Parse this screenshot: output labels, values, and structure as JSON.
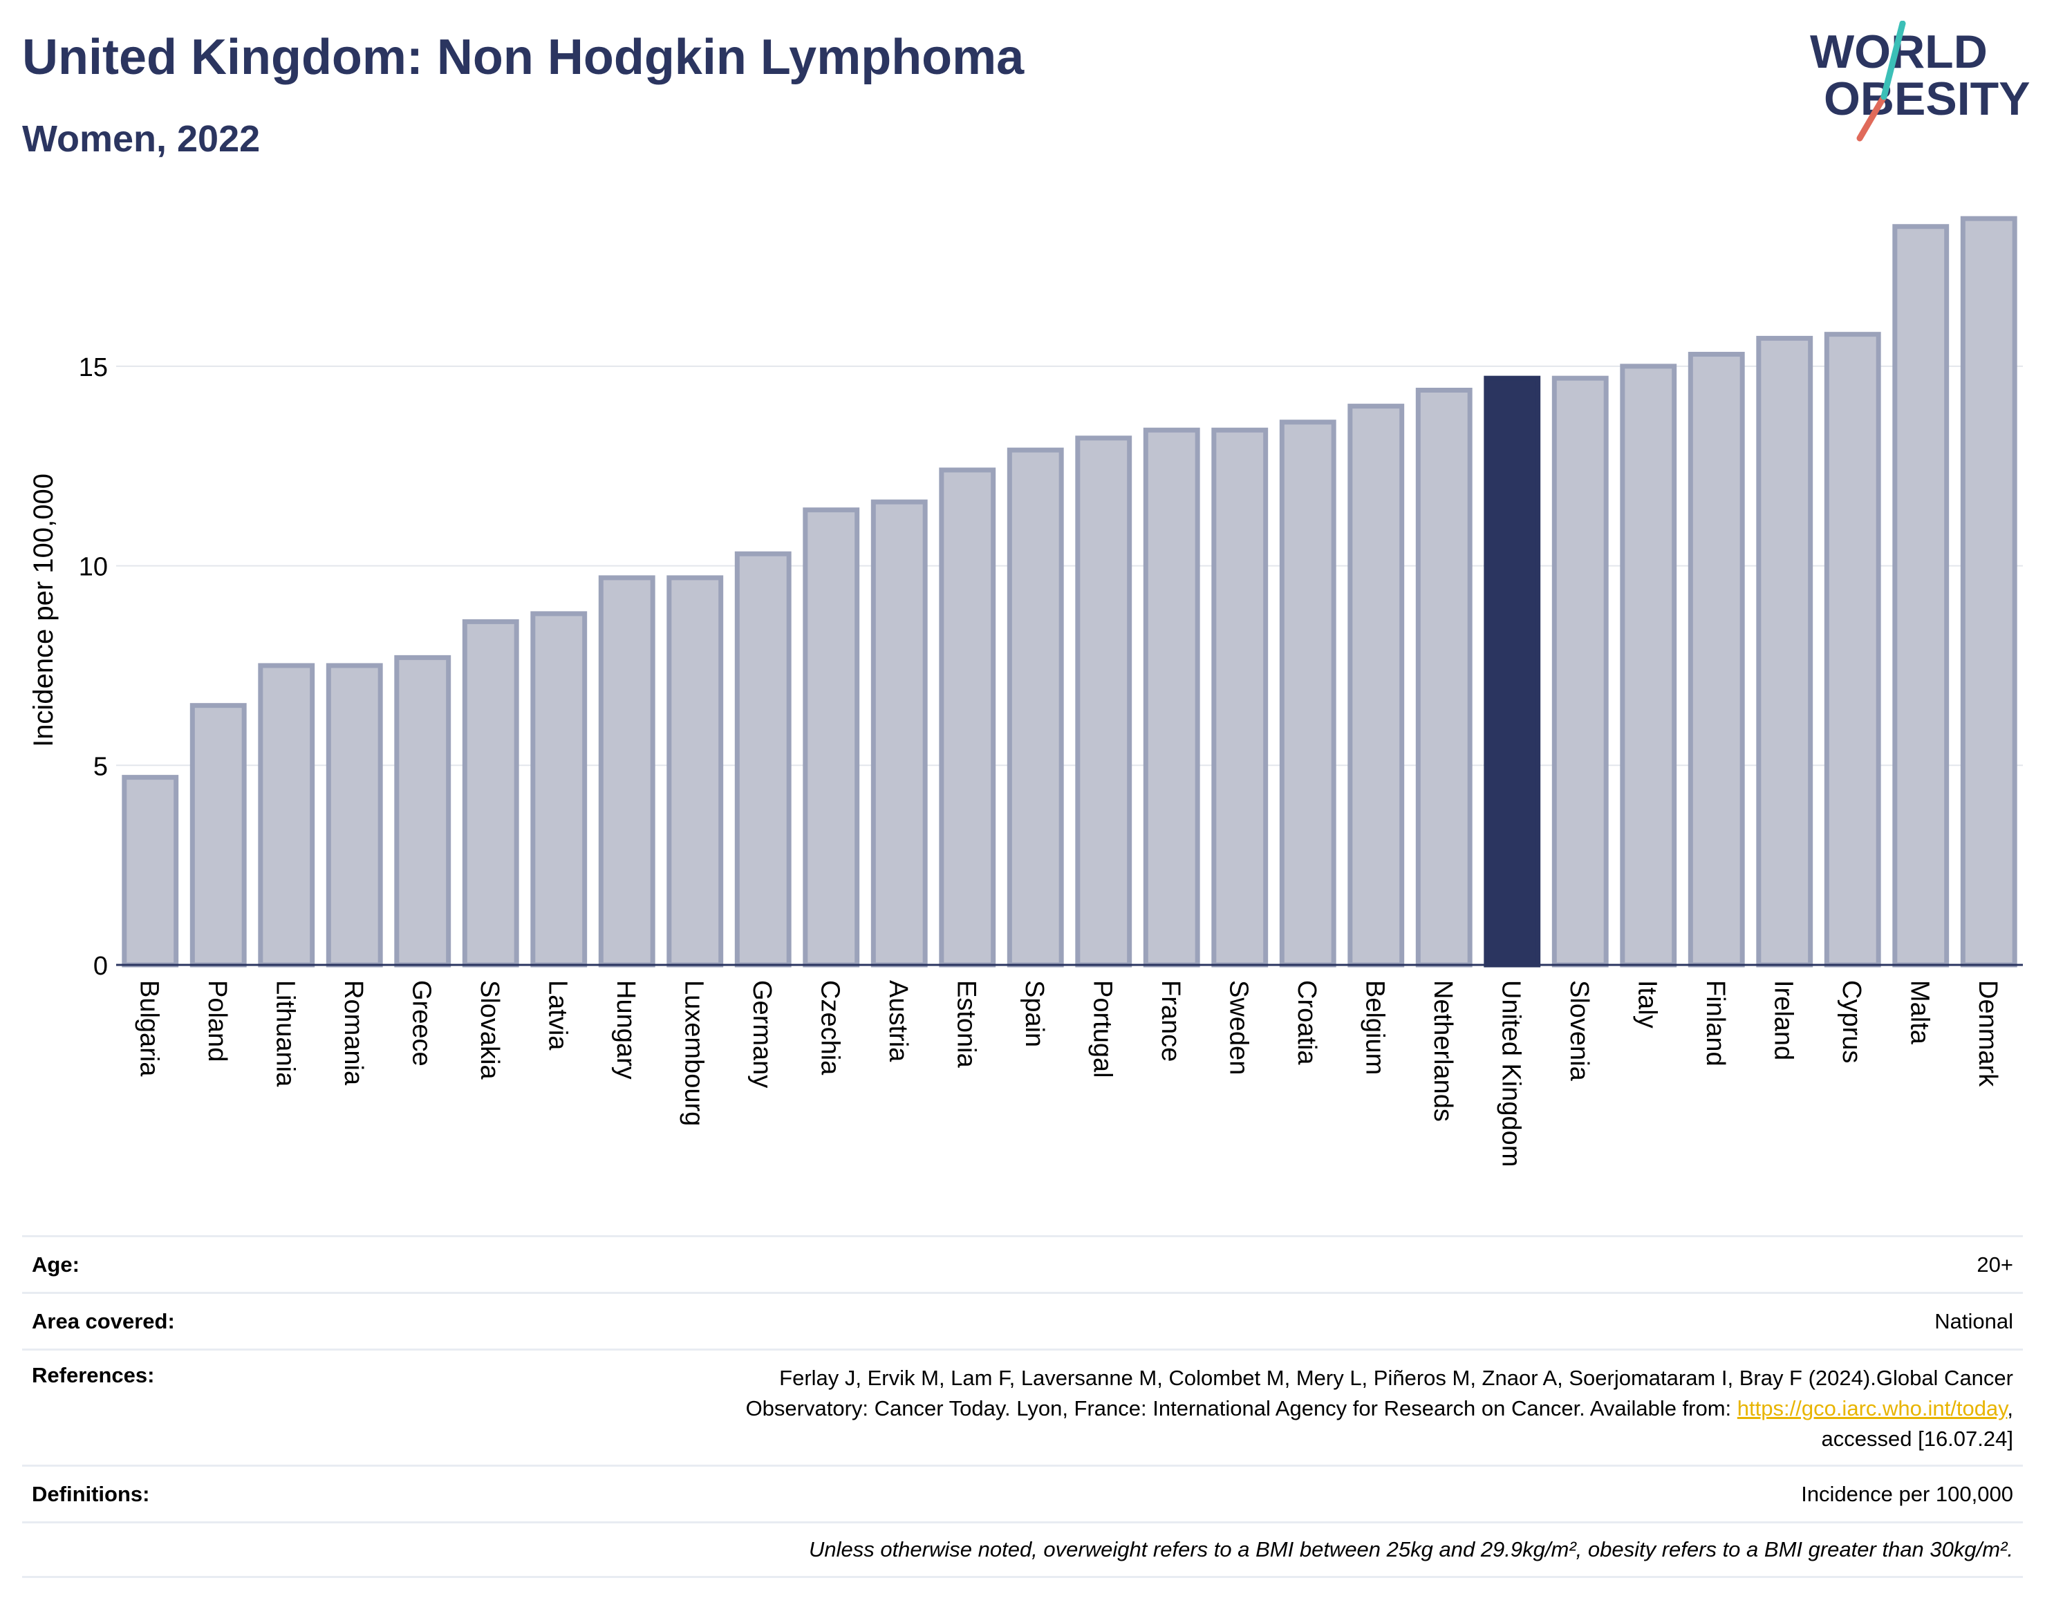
{
  "header": {
    "title": "United Kingdom: Non Hodgkin Lymphoma",
    "subtitle": "Women, 2022"
  },
  "logo": {
    "line1": "WORLD",
    "line2": "OBESITY"
  },
  "colors": {
    "bar_default": "#c0c3d0",
    "bar_default_stroke": "#9ba2ba",
    "bar_highlight": "#2b3560",
    "title": "#2b3560",
    "logo_teal": "#3bbfb7",
    "logo_red": "#e06a5a"
  },
  "chart_data": {
    "type": "bar",
    "categories": [
      "Bulgaria",
      "Poland",
      "Lithuania",
      "Romania",
      "Greece",
      "Slovakia",
      "Latvia",
      "Hungary",
      "Luxembourg",
      "Germany",
      "Czechia",
      "Austria",
      "Estonia",
      "Spain",
      "Portugal",
      "France",
      "Sweden",
      "Croatia",
      "Belgium",
      "Netherlands",
      "United Kingdom",
      "Slovenia",
      "Italy",
      "Finland",
      "Ireland",
      "Cyprus",
      "Malta",
      "Denmark"
    ],
    "values": [
      4.7,
      6.5,
      7.5,
      7.5,
      7.7,
      8.6,
      8.8,
      9.7,
      9.7,
      10.3,
      11.4,
      11.6,
      12.4,
      12.9,
      13.2,
      13.4,
      13.4,
      13.6,
      14.0,
      14.4,
      14.7,
      14.7,
      15.0,
      15.3,
      15.7,
      15.8,
      18.5,
      18.7
    ],
    "highlight": "United Kingdom",
    "ylabel": "Incidence per 100,000",
    "xlabel": "",
    "ylim": [
      0,
      19.5
    ],
    "yticks": [
      0,
      5,
      10,
      15
    ],
    "grid": true
  },
  "info": {
    "age": {
      "label": "Age:",
      "value": "20+"
    },
    "area": {
      "label": "Area covered:",
      "value": "National"
    },
    "references": {
      "label": "References:",
      "line1": "Ferlay J, Ervik M, Lam F, Laversanne M, Colombet M, Mery L, Piñeros M, Znaor A, Soerjomataram I, Bray F (2024).Global Cancer",
      "line2_pre": "Observatory: Cancer Today. Lyon, France: International Agency for Research on Cancer. Available from: ",
      "link": "https://gco.iarc.who.int/today",
      "line2_post": ",",
      "line3": "accessed [16.07.24]"
    },
    "definitions": {
      "label": "Definitions:",
      "value": "Incidence per 100,000"
    },
    "note": "Unless otherwise noted, overweight refers to a BMI between 25kg and 29.9kg/m², obesity refers to a BMI greater than 30kg/m²."
  }
}
